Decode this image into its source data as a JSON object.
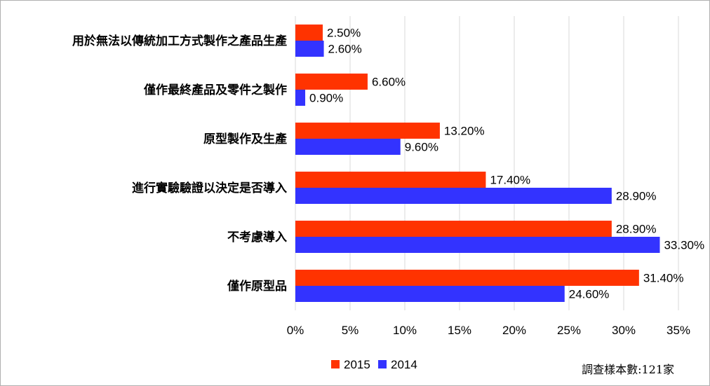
{
  "chart_data": {
    "type": "bar",
    "orientation": "horizontal",
    "categories": [
      "用於無法以傳統加工方式製作之產品生產",
      "僅作最終產品及零件之製作",
      "原型製作及生產",
      "進行實驗驗證以決定是否導入",
      "不考慮導入",
      "僅作原型品"
    ],
    "series": [
      {
        "name": "2015",
        "color": "#ff3300",
        "values": [
          2.5,
          6.6,
          13.2,
          17.4,
          28.9,
          31.4
        ],
        "labels": [
          "2.50%",
          "6.60%",
          "13.20%",
          "17.40%",
          "28.90%",
          "31.40%"
        ]
      },
      {
        "name": "2014",
        "color": "#3333ff",
        "values": [
          2.6,
          0.9,
          9.6,
          28.9,
          33.3,
          24.6
        ],
        "labels": [
          "2.60%",
          "0.90%",
          "9.60%",
          "28.90%",
          "33.30%",
          "24.60%"
        ]
      }
    ],
    "xticks": [
      "0%",
      "5%",
      "10%",
      "15%",
      "20%",
      "25%",
      "30%",
      "35%"
    ],
    "xlim": [
      0,
      35
    ],
    "grid": true,
    "legend_position": "bottom",
    "note": "調查樣本數:121家"
  }
}
